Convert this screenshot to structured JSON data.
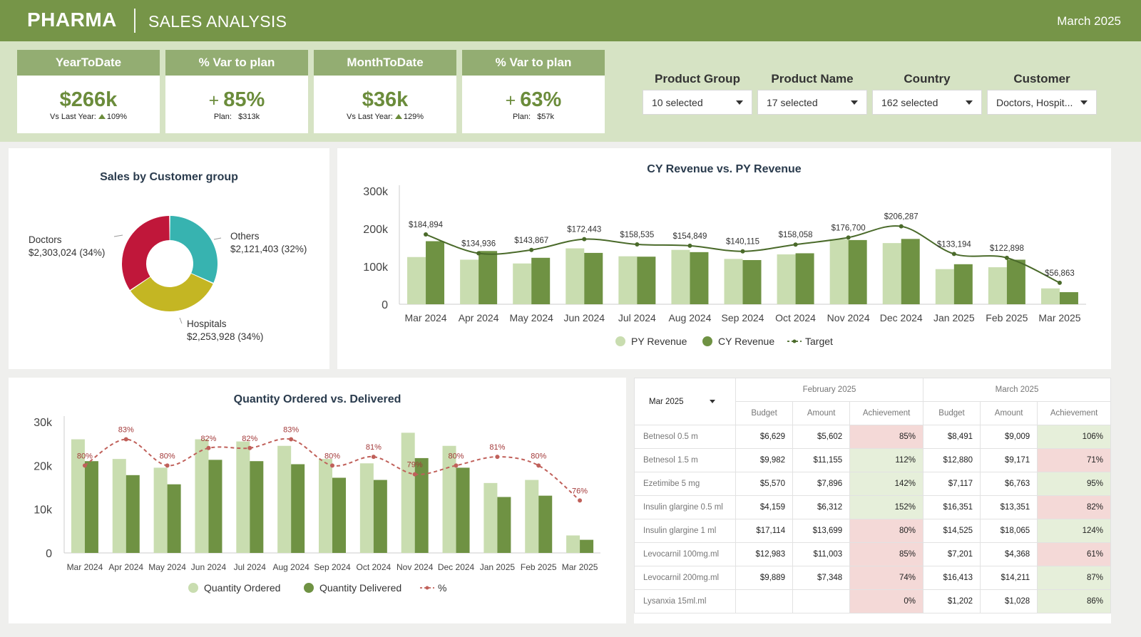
{
  "header": {
    "brand": "PHARMA",
    "subtitle": "SALES ANALYSIS",
    "date": "March 2025"
  },
  "kpis": [
    {
      "title": "YearToDate",
      "value": "$266k",
      "sub_label": "Vs Last Year:",
      "sub_value": "109%",
      "arrow": "up"
    },
    {
      "title": "% Var to plan",
      "plus": "+",
      "value": "85%",
      "sub_label": "Plan:",
      "sub_value": "$313k"
    },
    {
      "title": "MonthToDate",
      "value": "$36k",
      "sub_label": "Vs Last Year:",
      "sub_value": "129%",
      "arrow": "up"
    },
    {
      "title": "% Var to plan",
      "plus": "+",
      "value": "63%",
      "sub_label": "Plan:",
      "sub_value": "$57k"
    }
  ],
  "filters": [
    {
      "label": "Product Group",
      "value": "10 selected"
    },
    {
      "label": "Product Name",
      "value": "17 selected"
    },
    {
      "label": "Country",
      "value": "162 selected"
    },
    {
      "label": "Customer",
      "value": "Doctors, Hospit..."
    }
  ],
  "colors": {
    "header": "#769548",
    "light": "#c9ddb0",
    "dark": "#6f9243",
    "line": "#4a6a2a",
    "pie_red": "#c0173a",
    "pie_teal": "#37b3b0",
    "pie_yellow": "#c4b623",
    "dashed": "#c0605a"
  },
  "chart_data": [
    {
      "type": "pie",
      "title": "Sales by Customer group",
      "slices": [
        {
          "name": "Others",
          "value": 2121403,
          "label": "$2,121,403 (32%)",
          "color": "#37b3b0"
        },
        {
          "name": "Hospitals",
          "value": 2253928,
          "label": "$2,253,928 (34%)",
          "color": "#c4b623"
        },
        {
          "name": "Doctors",
          "value": 2303024,
          "label": "$2,303,024 (34%)",
          "color": "#c0173a"
        }
      ]
    },
    {
      "type": "bar",
      "title": "CY Revenue vs. PY Revenue",
      "categories": [
        "Mar 2024",
        "Apr 2024",
        "May 2024",
        "Jun 2024",
        "Jul 2024",
        "Aug 2024",
        "Sep 2024",
        "Oct 2024",
        "Nov 2024",
        "Dec 2024",
        "Jan 2025",
        "Feb 2025",
        "Mar 2025"
      ],
      "ylim": [
        0,
        300000
      ],
      "yticks": [
        "0",
        "100k",
        "200k",
        "300k"
      ],
      "series": [
        {
          "name": "PY Revenue",
          "values": [
            125000,
            118000,
            108000,
            148000,
            127000,
            144000,
            120000,
            132000,
            172000,
            162000,
            93000,
            98000,
            42000
          ]
        },
        {
          "name": "CY Revenue",
          "values": [
            167000,
            141000,
            123000,
            136000,
            126000,
            138000,
            117000,
            135000,
            170000,
            173000,
            106000,
            118000,
            32000
          ]
        },
        {
          "name": "Target",
          "values": [
            184894,
            134936,
            143867,
            172443,
            158535,
            154849,
            140115,
            158058,
            176700,
            206287,
            133194,
            122898,
            56863
          ],
          "labels": [
            "$184,894",
            "$134,936",
            "$143,867",
            "$172,443",
            "$158,535",
            "$154,849",
            "$140,115",
            "$158,058",
            "$176,700",
            "$206,287",
            "$133,194",
            "$122,898",
            "$56,863"
          ]
        }
      ]
    },
    {
      "type": "bar",
      "title": "Quantity Ordered vs. Delivered",
      "categories": [
        "Mar 2024",
        "Apr 2024",
        "May 2024",
        "Jun 2024",
        "Jul 2024",
        "Aug 2024",
        "Sep 2024",
        "Oct 2024",
        "Nov 2024",
        "Dec 2024",
        "Jan 2025",
        "Feb 2025",
        "Mar 2025"
      ],
      "ylim": [
        0,
        30000
      ],
      "yticks": [
        "0",
        "10k",
        "20k",
        "30k"
      ],
      "series": [
        {
          "name": "Quantity Ordered",
          "values": [
            26000,
            21500,
            19500,
            26000,
            25500,
            24500,
            21500,
            20500,
            27500,
            24500,
            16000,
            16700,
            4000
          ]
        },
        {
          "name": "Quantity Delivered",
          "values": [
            21000,
            17800,
            15700,
            21300,
            21000,
            20300,
            17200,
            16700,
            21700,
            19500,
            12800,
            13100,
            3000
          ]
        },
        {
          "name": "%",
          "values": [
            80,
            83,
            80,
            82,
            82,
            83,
            80,
            81,
            79,
            80,
            81,
            80,
            76
          ],
          "labels": [
            "80%",
            "83%",
            "80%",
            "82%",
            "82%",
            "83%",
            "80%",
            "81%",
            "79%",
            "80%",
            "81%",
            "80%",
            "76%"
          ]
        }
      ]
    }
  ],
  "table": {
    "selector": "Mar 2025",
    "groups": [
      "February 2025",
      "March 2025"
    ],
    "columns": [
      "Budget",
      "Amount",
      "Achievement",
      "Budget",
      "Amount",
      "Achievement"
    ],
    "rows": [
      {
        "name": "Betnesol 0.5 m",
        "fb": "$6,629",
        "fa": "$5,602",
        "fach": "85%",
        "fs": "neg",
        "mb": "$8,491",
        "ma": "$9,009",
        "mach": "106%",
        "ms": "pos"
      },
      {
        "name": "Betnesol 1.5 m",
        "fb": "$9,982",
        "fa": "$11,155",
        "fach": "112%",
        "fs": "pos",
        "mb": "$12,880",
        "ma": "$9,171",
        "mach": "71%",
        "ms": "neg"
      },
      {
        "name": "Ezetimibe 5 mg",
        "fb": "$5,570",
        "fa": "$7,896",
        "fach": "142%",
        "fs": "pos",
        "mb": "$7,117",
        "ma": "$6,763",
        "mach": "95%",
        "ms": "pos"
      },
      {
        "name": "Insulin glargine 0.5 ml",
        "fb": "$4,159",
        "fa": "$6,312",
        "fach": "152%",
        "fs": "pos",
        "mb": "$16,351",
        "ma": "$13,351",
        "mach": "82%",
        "ms": "neg"
      },
      {
        "name": "Insulin glargine 1 ml",
        "fb": "$17,114",
        "fa": "$13,699",
        "fach": "80%",
        "fs": "neg",
        "mb": "$14,525",
        "ma": "$18,065",
        "mach": "124%",
        "ms": "pos"
      },
      {
        "name": "Levocarnil 100mg.ml",
        "fb": "$12,983",
        "fa": "$11,003",
        "fach": "85%",
        "fs": "neg",
        "mb": "$7,201",
        "ma": "$4,368",
        "mach": "61%",
        "ms": "neg"
      },
      {
        "name": "Levocarnil 200mg.ml",
        "fb": "$9,889",
        "fa": "$7,348",
        "fach": "74%",
        "fs": "neg",
        "mb": "$16,413",
        "ma": "$14,211",
        "mach": "87%",
        "ms": "pos"
      },
      {
        "name": "Lysanxia 15ml.ml",
        "fb": "",
        "fa": "",
        "fach": "0%",
        "fs": "neg",
        "mb": "$1,202",
        "ma": "$1,028",
        "mach": "86%",
        "ms": "pos"
      }
    ]
  }
}
